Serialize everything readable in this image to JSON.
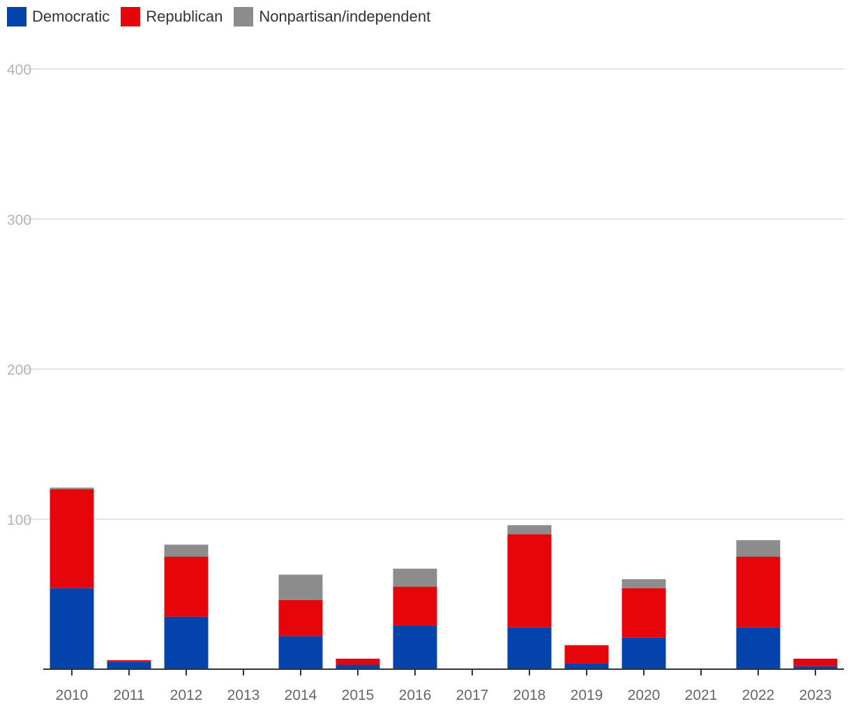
{
  "chart_data": {
    "type": "bar",
    "stacked": true,
    "categories": [
      "2010",
      "2011",
      "2012",
      "2013",
      "2014",
      "2015",
      "2016",
      "2017",
      "2018",
      "2019",
      "2020",
      "2021",
      "2022",
      "2023"
    ],
    "series": [
      {
        "name": "Democratic",
        "color": "#0443ab",
        "values": [
          54,
          5,
          35,
          0,
          22,
          3,
          29,
          0,
          28,
          4,
          21,
          0,
          28,
          2
        ]
      },
      {
        "name": "Republican",
        "color": "#e5050a",
        "values": [
          66,
          1,
          40,
          0,
          24,
          4,
          26,
          0,
          62,
          12,
          33,
          0,
          47,
          5
        ]
      },
      {
        "name": "Nonpartisan/independent",
        "color": "#8c8c8c",
        "values": [
          1,
          0,
          8,
          0,
          17,
          0,
          12,
          0,
          6,
          0,
          6,
          0,
          11,
          0
        ]
      }
    ],
    "yticks": [
      "100",
      "200",
      "300",
      "400"
    ],
    "ylim": [
      0,
      400
    ],
    "grid": true,
    "legend_position": "top-left"
  }
}
